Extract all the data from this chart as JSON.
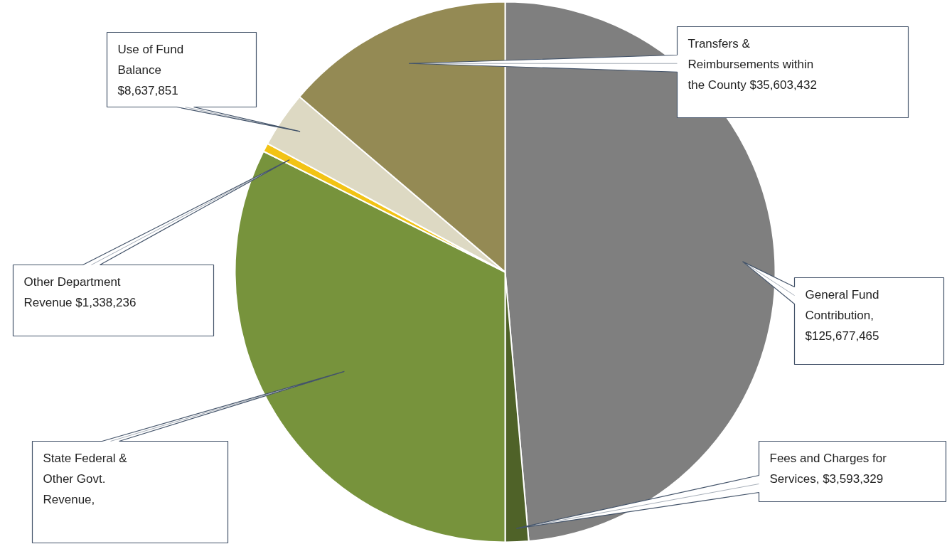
{
  "chart_data": {
    "type": "pie",
    "categories": [
      "General Fund Contribution",
      "Fees and Charges for Services",
      "State Federal & Other Govt. Revenue",
      "Other Department Revenue",
      "Use of Fund Balance",
      "Transfers & Reimbursements within the County"
    ],
    "values": [
      125677465,
      3593329,
      83700000,
      1338236,
      8637851,
      35603432
    ],
    "value_labels": [
      ", $125,677,465",
      ", $3,593,329",
      ",",
      " $1,338,236",
      " $8,637,851",
      " $35,603,432"
    ],
    "colors": [
      "#7f7f7f",
      "#4f6228",
      "#77933c",
      "#f2c314",
      "#ddd9c3",
      "#948a54"
    ]
  }
}
